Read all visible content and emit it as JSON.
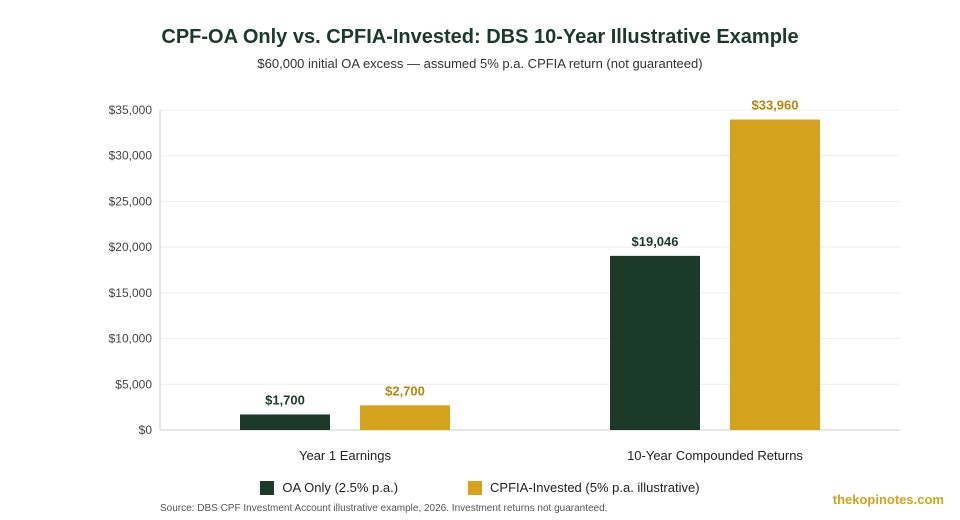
{
  "chart_data": {
    "type": "bar",
    "title": "CPF-OA Only vs. CPFIA-Invested: DBS 10-Year Illustrative Example",
    "subtitle": "$60,000 initial OA excess — assumed 5% p.a. CPFIA return (not guaranteed)",
    "categories": [
      "Year 1 Earnings",
      "10-Year Compounded Returns"
    ],
    "series": [
      {
        "name": "OA Only (2.5% p.a.)",
        "values": [
          1700,
          19046
        ],
        "labels": [
          "$1,700",
          "$19,046"
        ],
        "color": "#1b3a2a"
      },
      {
        "name": "CPFIA-Invested (5% p.a. illustrative)",
        "values": [
          2700,
          33960
        ],
        "labels": [
          "$2,700",
          "$33,960"
        ],
        "color": "#d4a21c"
      }
    ],
    "ylim": [
      0,
      35000
    ],
    "yticks": [
      0,
      5000,
      10000,
      15000,
      20000,
      25000,
      30000,
      35000
    ],
    "ytick_labels": [
      "$0",
      "$5,000",
      "$10,000",
      "$15,000",
      "$20,000",
      "$25,000",
      "$30,000",
      "$35,000"
    ],
    "xlabel": "",
    "ylabel": "",
    "grid": true,
    "legend_position": "bottom"
  },
  "footer": {
    "source": "Source: DBS CPF Investment Account illustrative example, 2026. Investment returns not guaranteed.",
    "watermark": "thekopinotes.com"
  }
}
